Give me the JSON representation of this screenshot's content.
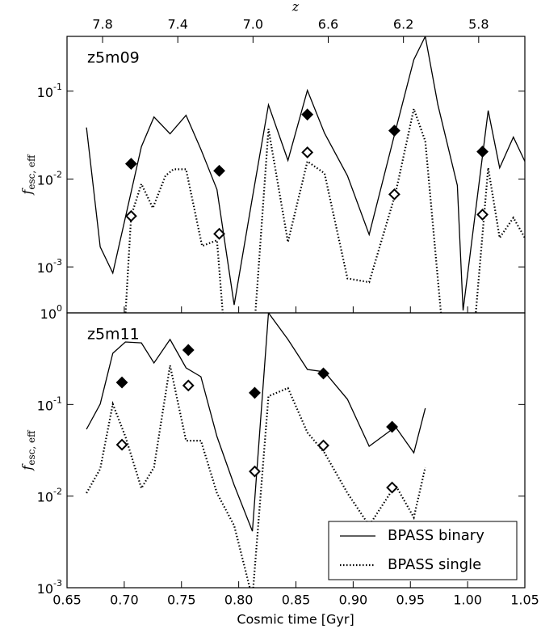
{
  "chart_data": {
    "type": "line",
    "log_y": true,
    "x_label": "Cosmic time [Gyr]",
    "xlim": [
      0.65,
      1.05
    ],
    "xticks": [
      0.65,
      {
        "value": 0.7,
        "label": "0.70"
      },
      0.75,
      {
        "value": 0.8,
        "label": "0.80"
      },
      0.85,
      {
        "value": 0.9,
        "label": "0.90"
      },
      0.95,
      {
        "value": 1.0,
        "label": "1.00"
      },
      1.05
    ],
    "x2_label": "z",
    "x2ticks": [
      7.8,
      7.4,
      {
        "value": 7,
        "label": "7.0"
      },
      6.6,
      6.2,
      5.8
    ],
    "y_label": "f",
    "y_label_sub": "esc, eff",
    "legend": "lower right",
    "panels": [
      {
        "label": "z5m09",
        "ylim": [
          0.0003,
          0.42
        ],
        "yticks": [
          {
            "value": 0.001,
            "label": "10^-3"
          },
          {
            "value": 0.01,
            "label": "10^-2"
          },
          {
            "value": 0.1,
            "label": "10^-1"
          }
        ],
        "series": [
          {
            "mark": "line",
            "dash": "solid",
            "color": "#000000",
            "x": [
              0.667,
              0.679,
              0.69,
              0.715,
              0.726,
              0.74,
              0.754,
              0.767,
              0.781,
              0.796,
              0.812,
              0.826,
              0.843,
              0.86,
              0.875,
              0.895,
              0.914,
              0.937,
              0.953,
              0.963,
              0.974,
              0.991,
              0.996,
              1.018,
              1.028,
              1.04,
              1.05
            ],
            "values": [
              0.0386,
              0.00169,
              0.00085,
              0.0233,
              0.0508,
              0.0327,
              0.0531,
              0.0218,
              0.0076,
              0.00037,
              0.00615,
              0.0698,
              0.0163,
              0.102,
              0.0333,
              0.0109,
              0.00233,
              0.0355,
              0.228,
              0.42,
              0.0698,
              0.00845,
              0.00032,
              0.0602,
              0.0134,
              0.03,
              0.0159
            ]
          },
          {
            "mark": "line",
            "dash": "dotted",
            "color": "#000000",
            "x": [
              0.699,
              0.706,
              0.715,
              0.725,
              0.736,
              0.743,
              0.754,
              0.768,
              0.781,
              0.789,
              0.812,
              0.826,
              0.843,
              0.86,
              0.875,
              0.895,
              0.914,
              0.937,
              0.953,
              0.963,
              0.98,
              1.004,
              1.018,
              1.028,
              1.04,
              1.05
            ],
            "values": [
              0.0001,
              0.00379,
              0.0088,
              0.00468,
              0.0109,
              0.0129,
              0.0129,
              0.00173,
              0.00201,
              0.0001,
              0.0001,
              0.0371,
              0.00192,
              0.0159,
              0.0116,
              0.00074,
              0.00067,
              0.00684,
              0.0628,
              0.027,
              0.0001,
              0.0001,
              0.0134,
              0.00214,
              0.00363,
              0.00214
            ]
          },
          {
            "mark": "diamond",
            "filled": true,
            "color": "#000000",
            "x": [
              0.706,
              0.783,
              0.86,
              0.936,
              1.013
            ],
            "values": [
              0.0149,
              0.0124,
              0.0542,
              0.0355,
              0.0205
            ]
          },
          {
            "mark": "diamond",
            "filled": false,
            "color": "#000000",
            "x": [
              0.706,
              0.783,
              0.86,
              0.936,
              1.013
            ],
            "values": [
              0.00379,
              0.00238,
              0.0201,
              0.0067,
              0.00394
            ]
          }
        ]
      },
      {
        "label": "z5m11",
        "ylim": [
          0.001,
          1
        ],
        "yticks": [
          {
            "value": 0.001,
            "label": "10^-3"
          },
          {
            "value": 0.01,
            "label": "10^-2"
          },
          {
            "value": 0.1,
            "label": "10^-1"
          },
          {
            "value": 1,
            "label": "10^0"
          }
        ],
        "series": [
          {
            "name": "BPASS binary",
            "mark": "line",
            "dash": "solid",
            "color": "#000000",
            "x": [
              0.667,
              0.679,
              0.69,
              0.701,
              0.715,
              0.726,
              0.74,
              0.754,
              0.767,
              0.781,
              0.796,
              0.812,
              0.826,
              0.843,
              0.86,
              0.875,
              0.895,
              0.914,
              0.937,
              0.953,
              0.963
            ],
            "values": [
              0.0536,
              0.101,
              0.362,
              0.481,
              0.471,
              0.284,
              0.512,
              0.251,
              0.201,
              0.0447,
              0.0132,
              0.00414,
              1.0,
              0.512,
              0.241,
              0.227,
              0.114,
              0.035,
              0.057,
              0.0297,
              0.091
            ]
          },
          {
            "name": "BPASS single",
            "mark": "line",
            "dash": "dotted",
            "color": "#000000",
            "x": [
              0.667,
              0.679,
              0.69,
              0.701,
              0.715,
              0.726,
              0.74,
              0.754,
              0.767,
              0.781,
              0.796,
              0.812,
              0.826,
              0.843,
              0.86,
              0.875,
              0.895,
              0.914,
              0.937,
              0.953,
              0.963
            ],
            "values": [
              0.0108,
              0.0198,
              0.101,
              0.0447,
              0.0122,
              0.0206,
              0.267,
              0.0403,
              0.0403,
              0.0108,
              0.00477,
              0.00077,
              0.123,
              0.151,
              0.0494,
              0.0297,
              0.0108,
              0.00477,
              0.0132,
              0.00585,
              0.0206
            ]
          },
          {
            "mark": "diamond",
            "filled": true,
            "color": "#000000",
            "x": [
              0.698,
              0.756,
              0.814,
              0.874,
              0.934
            ],
            "values": [
              0.174,
              0.393,
              0.134,
              0.218,
              0.057
            ]
          },
          {
            "mark": "diamond",
            "filled": false,
            "color": "#000000",
            "x": [
              0.698,
              0.756,
              0.814,
              0.874,
              0.934
            ],
            "values": [
              0.0364,
              0.161,
              0.0186,
              0.0357,
              0.0124
            ]
          }
        ]
      }
    ]
  }
}
